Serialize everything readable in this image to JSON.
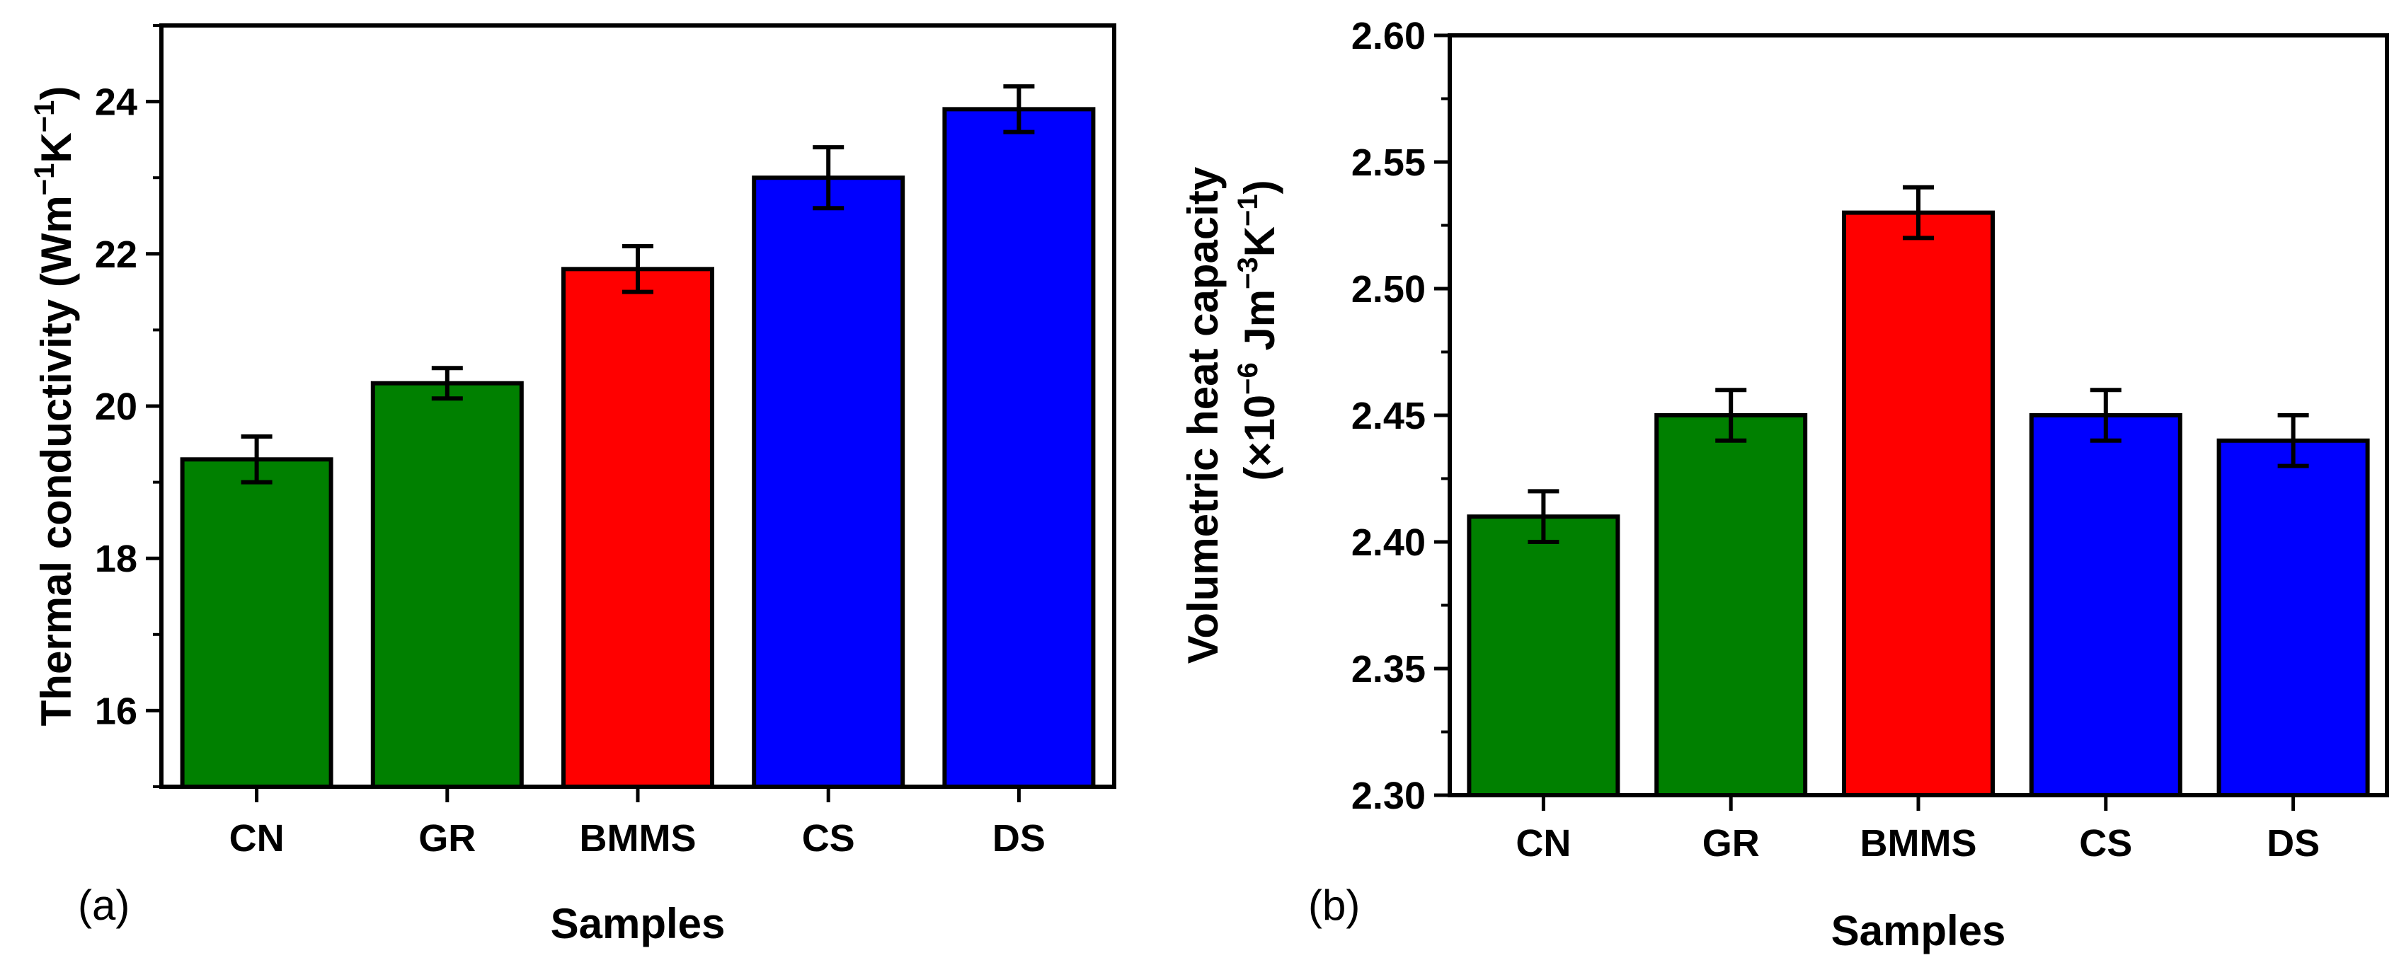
{
  "chart_data": [
    {
      "type": "bar",
      "panel_label": "(a)",
      "categories": [
        "CN",
        "GR",
        "BMMS",
        "CS",
        "DS"
      ],
      "values": [
        19.3,
        20.3,
        21.8,
        23.0,
        23.9
      ],
      "errors": [
        0.3,
        0.2,
        0.3,
        0.4,
        0.3
      ],
      "colors": [
        "#008000",
        "#008000",
        "#ff0000",
        "#0000ff",
        "#0000ff"
      ],
      "xlabel": "Samples",
      "ylabel": {
        "main": "Thermal conductivity (Wm",
        "sup1": "−1",
        "mid": "K",
        "sup2": "−1",
        "end": ")"
      },
      "ylim": [
        15,
        25
      ],
      "yticks": [
        "16",
        "18",
        "20",
        "22",
        "24"
      ],
      "ytick_values": [
        16,
        18,
        20,
        22,
        24
      ]
    },
    {
      "type": "bar",
      "panel_label": "(b)",
      "categories": [
        "CN",
        "GR",
        "BMMS",
        "CS",
        "DS"
      ],
      "values": [
        2.41,
        2.45,
        2.53,
        2.45,
        2.44
      ],
      "errors": [
        0.01,
        0.01,
        0.01,
        0.01,
        0.01
      ],
      "colors": [
        "#008000",
        "#008000",
        "#ff0000",
        "#0000ff",
        "#0000ff"
      ],
      "xlabel": "Samples",
      "ylabel": {
        "line1": "Volumetric heat capacity",
        "open": "(×10",
        "sup1": "−6",
        "mid1": " Jm",
        "sup2": "−3",
        "mid2": "K",
        "sup3": "−1",
        "end": ")"
      },
      "ylim": [
        2.3,
        2.6
      ],
      "yticks": [
        "2.30",
        "2.35",
        "2.40",
        "2.45",
        "2.50",
        "2.55",
        "2.60"
      ],
      "ytick_values": [
        2.3,
        2.35,
        2.4,
        2.45,
        2.5,
        2.55,
        2.6
      ]
    }
  ]
}
